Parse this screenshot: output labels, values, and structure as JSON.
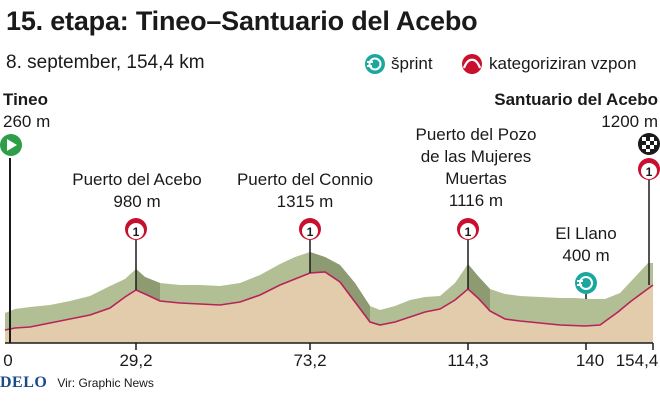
{
  "header": {
    "title": "15. etapa: Tineo–Santuario del Acebo",
    "subtitle": "8. september, 154,4 km"
  },
  "legend": {
    "sprint_label": "šprint",
    "climb_label": "kategoriziran vzpon"
  },
  "start": {
    "name": "Tineo",
    "elevation": "260 m"
  },
  "finish": {
    "name": "Santuario del Acebo",
    "elevation": "1200 m",
    "category": "1"
  },
  "climbs": [
    {
      "name_lines": [
        "Puerto del Acebo"
      ],
      "elevation": "980 m",
      "category": "1",
      "km": 29.2
    },
    {
      "name_lines": [
        "Puerto del Connio"
      ],
      "elevation": "1315 m",
      "category": "1",
      "km": 73.2
    },
    {
      "name_lines": [
        "Puerto del Pozo",
        "de las Mujeres",
        "Muertas"
      ],
      "elevation": "1116 m",
      "category": "1",
      "km": 114.3
    }
  ],
  "sprint": {
    "name": "El Llano",
    "elevation": "400 m",
    "km": 140
  },
  "km_markers": [
    "0",
    "29,2",
    "73,2",
    "114,3",
    "140",
    "154,4"
  ],
  "colors": {
    "green": "#2e9e48",
    "teal": "#1aa79f",
    "climb_red": "#c8102e",
    "profile_line": "#b5245a"
  },
  "footer": {
    "logo": "DELO",
    "source": "Vir: Graphic News"
  }
}
